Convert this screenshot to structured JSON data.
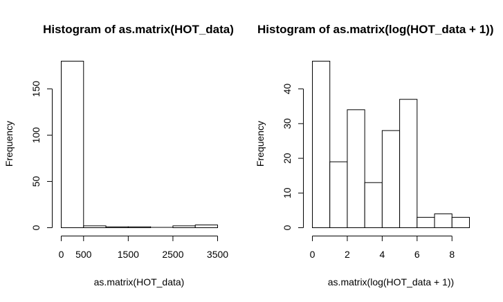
{
  "chart_data": [
    {
      "type": "bar",
      "title": "Histogram of as.matrix(HOT_data)",
      "xlabel": "as.matrix(HOT_data)",
      "ylabel": "Frequency",
      "bins": [
        [
          0,
          500
        ],
        [
          500,
          1000
        ],
        [
          1000,
          1500
        ],
        [
          1500,
          2000
        ],
        [
          2000,
          2500
        ],
        [
          2500,
          3000
        ],
        [
          3000,
          3500
        ]
      ],
      "values": [
        180,
        2,
        1,
        1,
        0,
        2,
        3
      ],
      "xlim": [
        0,
        3500
      ],
      "ylim": [
        0,
        180
      ],
      "xticks": [
        0,
        500,
        1500,
        2500,
        3500
      ],
      "xtick_labels": [
        "0",
        "500",
        "1500",
        "2500",
        "3500"
      ],
      "yticks": [
        0,
        50,
        100,
        150
      ],
      "ytick_labels": [
        "0",
        "50",
        "100",
        "150"
      ]
    },
    {
      "type": "bar",
      "title": "Histogram of as.matrix(log(HOT_data + 1))",
      "xlabel": "as.matrix(log(HOT_data + 1))",
      "ylabel": "Frequency",
      "bins": [
        [
          0,
          1
        ],
        [
          1,
          2
        ],
        [
          2,
          3
        ],
        [
          3,
          4
        ],
        [
          4,
          5
        ],
        [
          5,
          6
        ],
        [
          6,
          7
        ],
        [
          7,
          8
        ],
        [
          8,
          9
        ]
      ],
      "values": [
        48,
        19,
        34,
        13,
        28,
        37,
        3,
        4,
        3
      ],
      "xlim": [
        0,
        9
      ],
      "ylim": [
        0,
        48
      ],
      "xticks": [
        0,
        2,
        4,
        6,
        8
      ],
      "xtick_labels": [
        "0",
        "2",
        "4",
        "6",
        "8"
      ],
      "yticks": [
        0,
        10,
        20,
        30,
        40
      ],
      "ytick_labels": [
        "0",
        "10",
        "20",
        "30",
        "40"
      ]
    }
  ]
}
